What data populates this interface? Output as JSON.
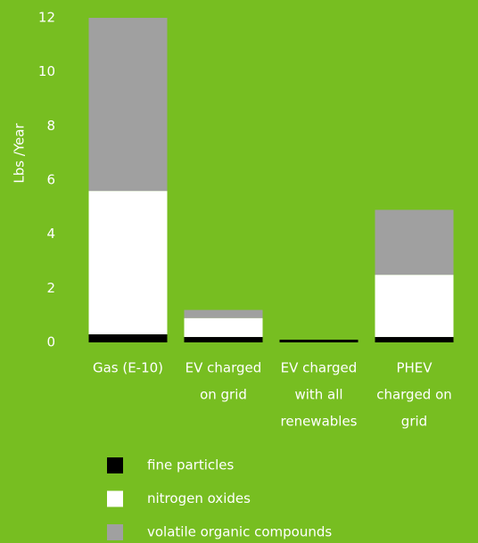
{
  "chart_data": {
    "type": "stacked-bar",
    "y_label": "Lbs /Year",
    "categories": [
      [
        "Gas (E-10)"
      ],
      [
        "EV charged",
        "on grid"
      ],
      [
        "EV charged",
        "with all",
        "renewables"
      ],
      [
        "PHEV",
        "charged on",
        "grid"
      ]
    ],
    "series": [
      {
        "name": "fine particles",
        "color": "#000000",
        "values": [
          0.3,
          0.2,
          0.1,
          0.2
        ]
      },
      {
        "name": "nitrogen oxides",
        "color": "#ffffff",
        "values": [
          5.3,
          0.7,
          0,
          2.3
        ]
      },
      {
        "name": "volatile organic compounds",
        "color": "#a0a0a0",
        "values": [
          6.4,
          0.3,
          0,
          2.4
        ]
      }
    ],
    "ylim": [
      0,
      12
    ],
    "yticks": [
      0,
      2,
      4,
      6,
      8,
      10,
      12
    ],
    "grid": false
  }
}
